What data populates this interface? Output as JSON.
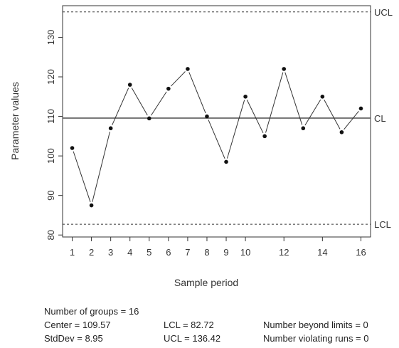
{
  "chart_data": {
    "type": "line",
    "title": "",
    "xlabel": "Sample period",
    "ylabel": "Parameter values",
    "x": [
      1,
      2,
      3,
      4,
      5,
      6,
      7,
      8,
      9,
      10,
      11,
      12,
      13,
      14,
      15,
      16
    ],
    "values": [
      102,
      87.5,
      107,
      118,
      109.5,
      117,
      122,
      110,
      98.5,
      115,
      105,
      122,
      107,
      115,
      106,
      112
    ],
    "xtick_labels": [
      "1",
      "2",
      "3",
      "4",
      "5",
      "6",
      "7",
      "8",
      "9",
      "10",
      "12",
      "14",
      "16"
    ],
    "xtick_positions": [
      1,
      2,
      3,
      4,
      5,
      6,
      7,
      8,
      9,
      10,
      12,
      14,
      16
    ],
    "yticks": [
      80,
      90,
      100,
      110,
      120,
      130
    ],
    "xlim": [
      0.5,
      16.5
    ],
    "ylim": [
      79.5,
      138
    ],
    "center_line": {
      "label": "CL",
      "value": 109.57
    },
    "upper_limit": {
      "label": "UCL",
      "value": 136.42
    },
    "lower_limit": {
      "label": "LCL",
      "value": 82.72
    },
    "grid": false
  },
  "summary": {
    "groups": "Number of groups = 16",
    "center": "Center = 109.57",
    "stddev": "StdDev = 8.95",
    "lcl": "LCL = 82.72",
    "ucl": "UCL = 136.42",
    "beyond": "Number beyond limits = 0",
    "violating": "Number violating runs = 0"
  }
}
